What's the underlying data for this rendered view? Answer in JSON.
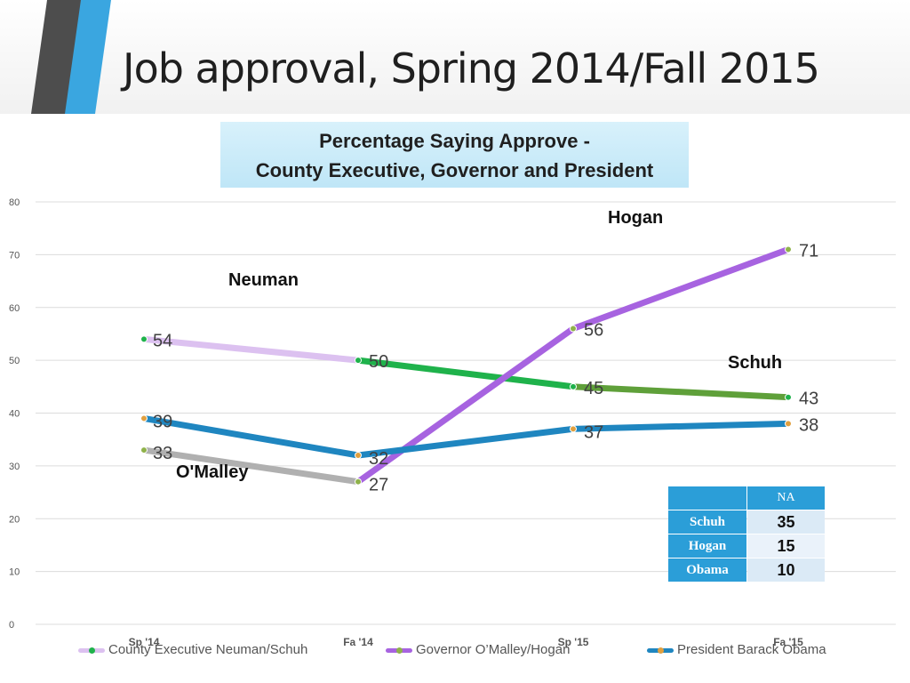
{
  "header": {
    "title": "Job approval, Spring 2014/Fall 2015"
  },
  "chart_data": {
    "type": "line",
    "title_line1": "Percentage Saying Approve -",
    "title_line2": "County Executive, Governor and President",
    "categories": [
      "Sp '14",
      "Fa '14",
      "Sp '15",
      "Fa '15"
    ],
    "ylim": [
      0,
      80
    ],
    "yticks": [
      0,
      10,
      20,
      30,
      40,
      50,
      60,
      70,
      80
    ],
    "series": [
      {
        "name": "County Executive Neuman/Schuh",
        "values": [
          54,
          50,
          45,
          43
        ],
        "labels": [
          "54",
          "50",
          "45",
          "43"
        ],
        "colors": [
          "#dcc1f0",
          "#1fb24b",
          "#5fa03a"
        ],
        "marker": "#1fb24b"
      },
      {
        "name": "Governor O'Malley/Hogan",
        "values": [
          33,
          27,
          56,
          71
        ],
        "labels": [
          "33",
          "27",
          "56",
          "71"
        ],
        "colors": [
          "#b0b0b0",
          "#a763e0",
          "#a763e0"
        ],
        "marker": "#8fb24a"
      },
      {
        "name": "President Barack Obama",
        "values": [
          39,
          32,
          37,
          38
        ],
        "labels": [
          "39",
          "32",
          "37",
          "38"
        ],
        "colors": [
          "#1f86c0",
          "#1f86c0",
          "#1f86c0"
        ],
        "marker": "#e0a040"
      }
    ],
    "annotations": {
      "neuman": "Neuman",
      "hogan": "Hogan",
      "schuh": "Schuh",
      "omalley": "O'Malley"
    }
  },
  "na_table": {
    "header": "NA",
    "rows": [
      {
        "label": "Schuh",
        "value": "35"
      },
      {
        "label": "Hogan",
        "value": "15"
      },
      {
        "label": "Obama",
        "value": "10"
      }
    ]
  },
  "legend": {
    "items": [
      {
        "label": "County Executive Neuman/Schuh",
        "color": "#dcc1f0",
        "dot": "#1fb24b"
      },
      {
        "label": "Governor O’Malley/Hogan",
        "color": "#a763e0",
        "dot": "#8fb24a"
      },
      {
        "label": "President Barack Obama",
        "color": "#1f86c0",
        "dot": "#e0a040"
      }
    ]
  }
}
